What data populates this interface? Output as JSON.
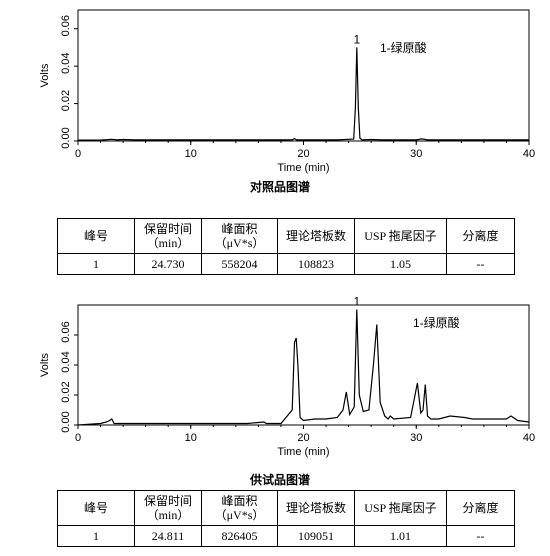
{
  "chart_data": [
    {
      "type": "line",
      "title": "",
      "xlabel": "Time (min)",
      "ylabel": "Volts",
      "xlim": [
        0,
        40
      ],
      "ylim": [
        0,
        0.07
      ],
      "x_ticks": [
        0,
        10,
        20,
        30,
        40
      ],
      "y_ticks": [
        0.0,
        0.02,
        0.04,
        0.06
      ],
      "y_tick_labels": [
        "0.00",
        "0.02",
        "0.04",
        "0.06"
      ],
      "grid": false,
      "peak_label": "1",
      "annotation": "1-绿原酸",
      "series": [
        {
          "x": [
            0,
            2,
            3,
            3.5,
            4,
            5,
            10,
            15,
            19.0,
            19.2,
            19.4,
            20,
            23,
            24.45,
            24.6,
            24.73,
            24.86,
            25.0,
            25.2,
            26,
            27,
            30,
            30.5,
            31,
            35,
            40
          ],
          "values": [
            0.0005,
            0.0005,
            0.0009,
            0.0006,
            0.0008,
            0.0006,
            0.0006,
            0.0006,
            0.0006,
            0.0013,
            0.0006,
            0.0006,
            0.0006,
            0.001,
            0.018,
            0.05,
            0.018,
            0.0015,
            0.0006,
            0.0008,
            0.0006,
            0.0006,
            0.0011,
            0.0006,
            0.0006,
            0.0006
          ]
        }
      ]
    },
    {
      "type": "line",
      "title": "",
      "xlabel": "Time (min)",
      "ylabel": "Volts",
      "xlim": [
        0,
        40
      ],
      "ylim": [
        0,
        0.08
      ],
      "x_ticks": [
        0,
        10,
        20,
        30,
        40
      ],
      "y_ticks": [
        0.0,
        0.02,
        0.04,
        0.06
      ],
      "y_tick_labels": [
        "0.00",
        "0.02",
        "0.04",
        "0.06"
      ],
      "grid": false,
      "peak_label": "1",
      "annotation": "1-绿原酸",
      "series": [
        {
          "x": [
            0,
            2.0,
            2.5,
            2.8,
            3.0,
            3.2,
            5,
            10,
            15,
            16.5,
            16.7,
            18,
            19.0,
            19.2,
            19.35,
            19.5,
            19.7,
            20.0,
            21,
            22,
            23.0,
            23.5,
            23.8,
            24.1,
            24.5,
            24.73,
            24.95,
            25.3,
            25.8,
            26.2,
            26.5,
            26.8,
            27.2,
            27.5,
            27.7,
            28,
            29.5,
            30.1,
            30.4,
            30.6,
            30.8,
            31.0,
            31.3,
            32,
            33,
            34.3,
            35,
            36,
            38,
            38.4,
            39,
            40
          ],
          "values": [
            0.0,
            0.001,
            0.002,
            0.003,
            0.004,
            0.001,
            0.001,
            0.001,
            0.001,
            0.002,
            0.001,
            0.001,
            0.01,
            0.055,
            0.058,
            0.04,
            0.005,
            0.003,
            0.004,
            0.004,
            0.005,
            0.01,
            0.022,
            0.007,
            0.012,
            0.077,
            0.02,
            0.009,
            0.01,
            0.04,
            0.067,
            0.015,
            0.006,
            0.004,
            0.006,
            0.004,
            0.005,
            0.028,
            0.008,
            0.01,
            0.027,
            0.006,
            0.004,
            0.004,
            0.006,
            0.005,
            0.004,
            0.004,
            0.004,
            0.006,
            0.003,
            0.002
          ]
        }
      ]
    }
  ],
  "captions": {
    "reference": "对照品图谱",
    "sample": "供试品图谱"
  },
  "table_headers": [
    "峰号",
    "保留时间\n（min）",
    "峰面积\n（μV*s）",
    "理论塔板数",
    "USP 拖尾因子",
    "分离度"
  ],
  "table_reference_row": [
    "1",
    "24.730",
    "558204",
    "108823",
    "1.05",
    "--"
  ],
  "table_sample_row": [
    "1",
    "24.811",
    "826405",
    "109051",
    "1.01",
    "--"
  ]
}
